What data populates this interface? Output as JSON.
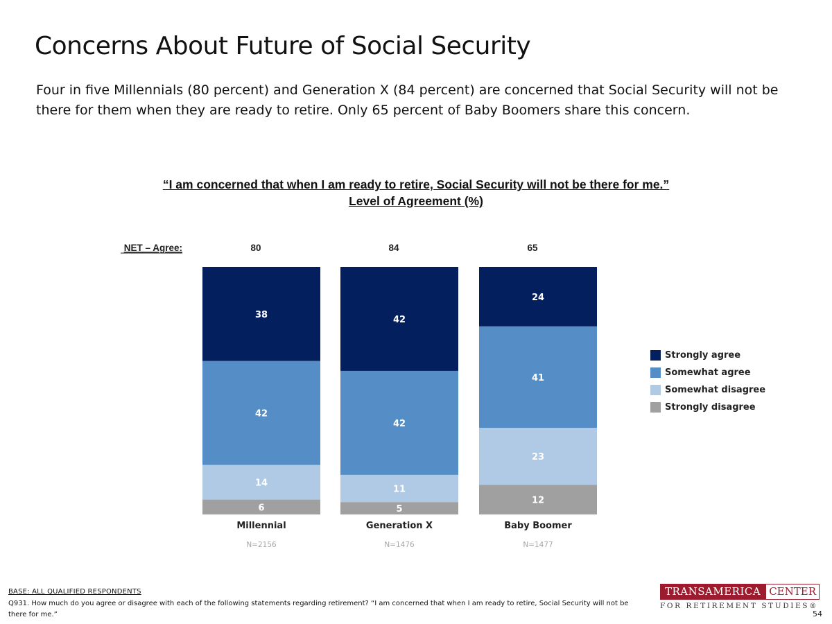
{
  "title": "Concerns About Future of Social Security",
  "subtitle": "Four in five Millennials (80 percent) and Generation X (84 percent) are concerned that Social Security will not be there for them when they are ready to retire. Only 65 percent of Baby Boomers share this concern.",
  "chart_data": {
    "type": "bar",
    "stacked": true,
    "title": "“I am concerned that when I am ready to retire, Social Security will not be there for me.”",
    "subtitle": "Level of Agreement (%)",
    "net_label": "NET – Agree:",
    "categories": [
      "Millennial",
      "Generation X",
      "Baby Boomer"
    ],
    "sample_sizes": [
      "N=2156",
      "N=1476",
      "N=1477"
    ],
    "net_agree": [
      80,
      84,
      65
    ],
    "series": [
      {
        "name": "Strongly disagree",
        "color": "#a0a0a0",
        "label_color": "#ffffff",
        "values": [
          6,
          5,
          12
        ]
      },
      {
        "name": "Somewhat disagree",
        "color": "#b0cae5",
        "label_color": "#ffffff",
        "values": [
          14,
          11,
          23
        ]
      },
      {
        "name": "Somewhat agree",
        "color": "#558ec6",
        "label_color": "#ffffff",
        "values": [
          42,
          42,
          41
        ]
      },
      {
        "name": "Strongly agree",
        "color": "#031f5e",
        "label_color": "#ffffff",
        "values": [
          38,
          42,
          24
        ]
      }
    ],
    "legend_order": [
      "Strongly agree",
      "Somewhat agree",
      "Somewhat disagree",
      "Strongly disagree"
    ],
    "legend_position": "right",
    "ylim": [
      0,
      100
    ]
  },
  "footer": {
    "base": "BASE: ALL QUALIFIED RESPONDENTS",
    "question": "Q931. How much do you agree or disagree with each of the following statements regarding retirement? “I am concerned that when I am ready to retire, Social Security will not be there for me.”"
  },
  "logo": {
    "left": "TRANSAMERICA",
    "right": "CENTER",
    "bottom": "FOR RETIREMENT STUDIES®"
  },
  "page_number": "54"
}
